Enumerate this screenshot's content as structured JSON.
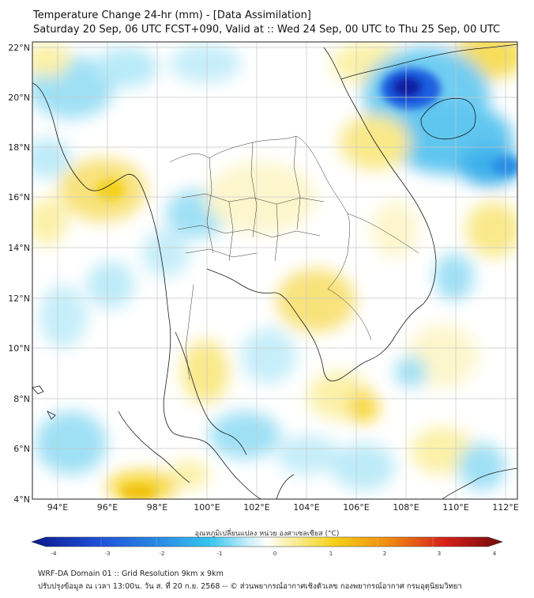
{
  "header": {
    "title": "Temperature Change 24-hr (mm) - [Data Assimilation]",
    "subtitle": "Saturday 20 Sep, 06 UTC FCST+090, Valid at :: Wed 24 Sep, 00 UTC to Thu 25 Sep, 00 UTC"
  },
  "map": {
    "lat_ticks": [
      "22°N",
      "20°N",
      "18°N",
      "16°N",
      "14°N",
      "12°N",
      "10°N",
      "8°N",
      "6°N",
      "4°N"
    ],
    "lon_ticks": [
      "94°E",
      "96°E",
      "98°E",
      "100°E",
      "102°E",
      "104°E",
      "106°E",
      "108°E",
      "110°E",
      "112°E"
    ],
    "lat_range": [
      4,
      22.3
    ],
    "lon_range": [
      93,
      112.5
    ]
  },
  "colorbar": {
    "label": "อุณหภูมิเปลี่ยนแปลง หน่วย องศาเซลเซียส (°C)",
    "ticks": [
      "-4",
      "-3",
      "-2",
      "-1",
      "0",
      "1",
      "2",
      "3",
      "4"
    ],
    "range": [
      -4,
      4
    ],
    "colors": {
      "deep_blue": "#0a1a8c",
      "blue": "#1f4fd8",
      "cyan": "#35c6ee",
      "light_cyan": "#c9eefa",
      "white": "#ffffff",
      "light_yellow": "#fbf3b4",
      "yellow": "#f5d21a",
      "orange": "#f08a10",
      "red": "#d6201c",
      "dark_red": "#6e0a0a"
    }
  },
  "footer": {
    "line1": "WRF-DA Domain 01 :: Grid Resolution 9km x 9km",
    "line2": "ปรับปรุงข้อมูล ณ เวลา 13:00น. วัน ส. ที่ 20 ก.ย. 2568 -- © ส่วนพยากรณ์อากาศเชิงตัวเลข กองพยากรณ์อากาศ กรมอุตุนิยมวิทยา"
  }
}
